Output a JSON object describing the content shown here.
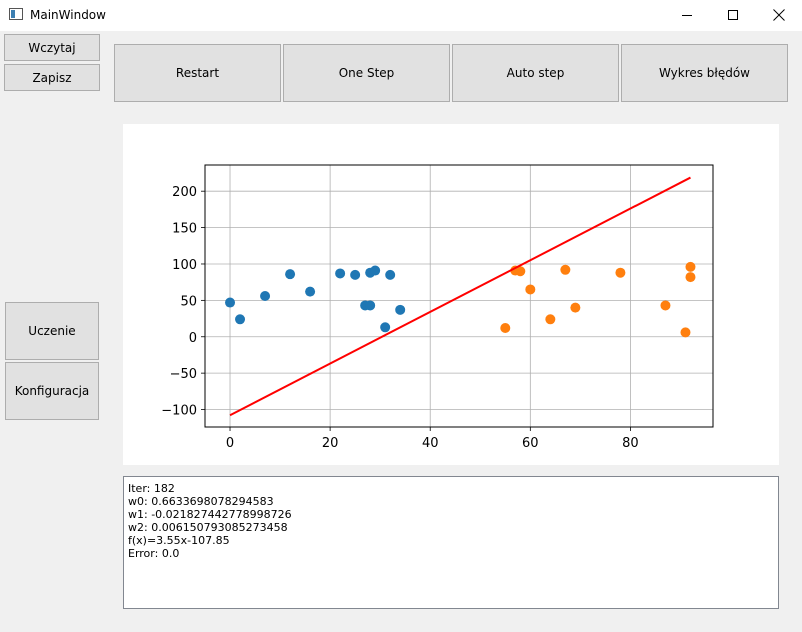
{
  "window": {
    "title": "MainWindow"
  },
  "buttons": {
    "load": "Wczytaj",
    "save": "Zapisz",
    "restart": "Restart",
    "one_step": "One Step",
    "auto_step": "Auto step",
    "error_chart": "Wykres błędów",
    "learning": "Uczenie",
    "config": "Konfiguracja"
  },
  "chart_data": {
    "type": "scatter",
    "xlim": [
      -5,
      96.5
    ],
    "ylim": [
      -124,
      236
    ],
    "xticks": [
      0,
      20,
      40,
      60,
      80
    ],
    "yticks": [
      -100,
      -50,
      0,
      50,
      100,
      150,
      200
    ],
    "grid": true,
    "series": [
      {
        "color": "#1f77b4",
        "points": [
          [
            0,
            47
          ],
          [
            2,
            24
          ],
          [
            7,
            56
          ],
          [
            12,
            86
          ],
          [
            16,
            62
          ],
          [
            22,
            87
          ],
          [
            25,
            85
          ],
          [
            27,
            43
          ],
          [
            28,
            88
          ],
          [
            28,
            43
          ],
          [
            29,
            91
          ],
          [
            31,
            13
          ],
          [
            32,
            85
          ],
          [
            34,
            37
          ]
        ]
      },
      {
        "color": "#ff7f0e",
        "points": [
          [
            55,
            12
          ],
          [
            57,
            91
          ],
          [
            58,
            90
          ],
          [
            60,
            65
          ],
          [
            64,
            24
          ],
          [
            67,
            92
          ],
          [
            69,
            40
          ],
          [
            78,
            88
          ],
          [
            87,
            43
          ],
          [
            91,
            6
          ],
          [
            92,
            96
          ],
          [
            92,
            82
          ]
        ]
      }
    ],
    "line": {
      "color": "#ff0000",
      "x": [
        0,
        92
      ],
      "y": [
        -107.85,
        218.75
      ]
    }
  },
  "output": {
    "lines": [
      "Iter: 182",
      "w0: 0.6633698078294583",
      "w1: -0.021827442778998726",
      "w2: 0.006150793085273458",
      "f(x)=3.55x-107.85",
      "Error: 0.0"
    ]
  }
}
